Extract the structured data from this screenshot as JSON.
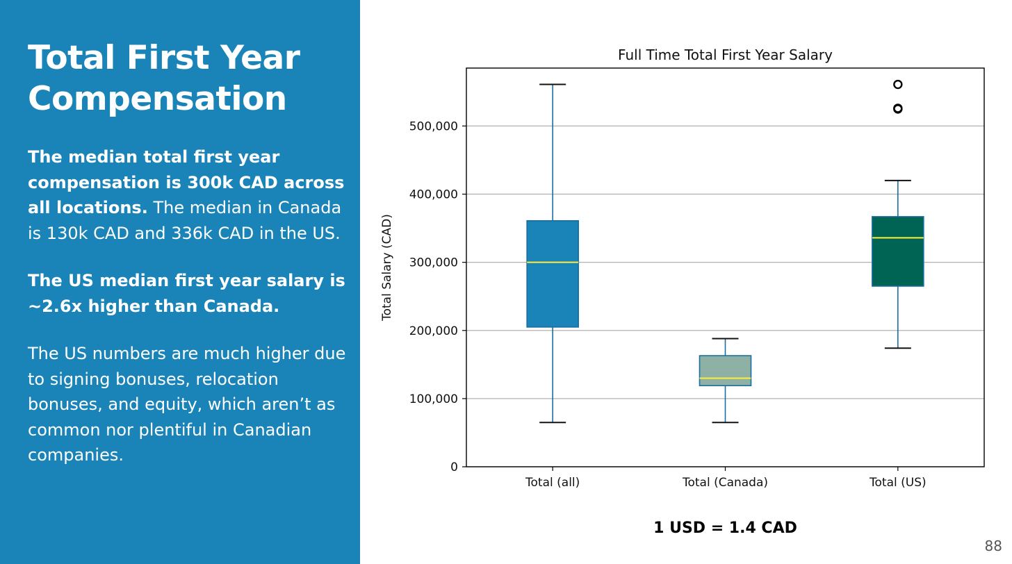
{
  "slide": {
    "title_line1": "Total First Year",
    "title_line2": "Compensation",
    "p1_bold": "The median total first year compensation is 300k CAD across all locations.",
    "p1_rest": " The median in Canada is 130k CAD and 336k CAD in the US.",
    "p2_bold": "The US median first year salary is ~2.6x higher than Canada.",
    "p3": "The US numbers are much higher due to signing bonuses, relocation bonuses, and equity, which aren’t as common nor plentiful in Canadian companies.",
    "footnote": "1 USD = 1.4 CAD",
    "page_number": "88"
  },
  "chart_data": {
    "type": "box",
    "title": "Full Time Total First Year Salary",
    "xlabel": "",
    "ylabel": "Total Salary (CAD)",
    "ylim": [
      0,
      585000
    ],
    "yticks": [
      0,
      100000,
      200000,
      300000,
      400000,
      500000
    ],
    "ytick_labels": [
      "0",
      "100,000",
      "200,000",
      "300,000",
      "400,000",
      "500,000"
    ],
    "grid": "horizontal",
    "categories": [
      "Total (all)",
      "Total (Canada)",
      "Total (US)"
    ],
    "boxes": [
      {
        "name": "Total (all)",
        "whisker_low": 65000,
        "q1": 205000,
        "median": 300000,
        "q3": 361000,
        "whisker_high": 561000,
        "outliers": [],
        "color": "#1a84b8"
      },
      {
        "name": "Total (Canada)",
        "whisker_low": 65000,
        "q1": 119000,
        "median": 130000,
        "q3": 163000,
        "whisker_high": 188000,
        "outliers": [],
        "color": "#8fb0a4"
      },
      {
        "name": "Total (US)",
        "whisker_low": 174000,
        "q1": 265000,
        "median": 336000,
        "q3": 367000,
        "whisker_high": 420000,
        "outliers": [
          525000,
          526000,
          561000
        ],
        "color": "#006455"
      }
    ],
    "median_color": "#ffef3a",
    "edge_color": "#1a6ea0"
  }
}
